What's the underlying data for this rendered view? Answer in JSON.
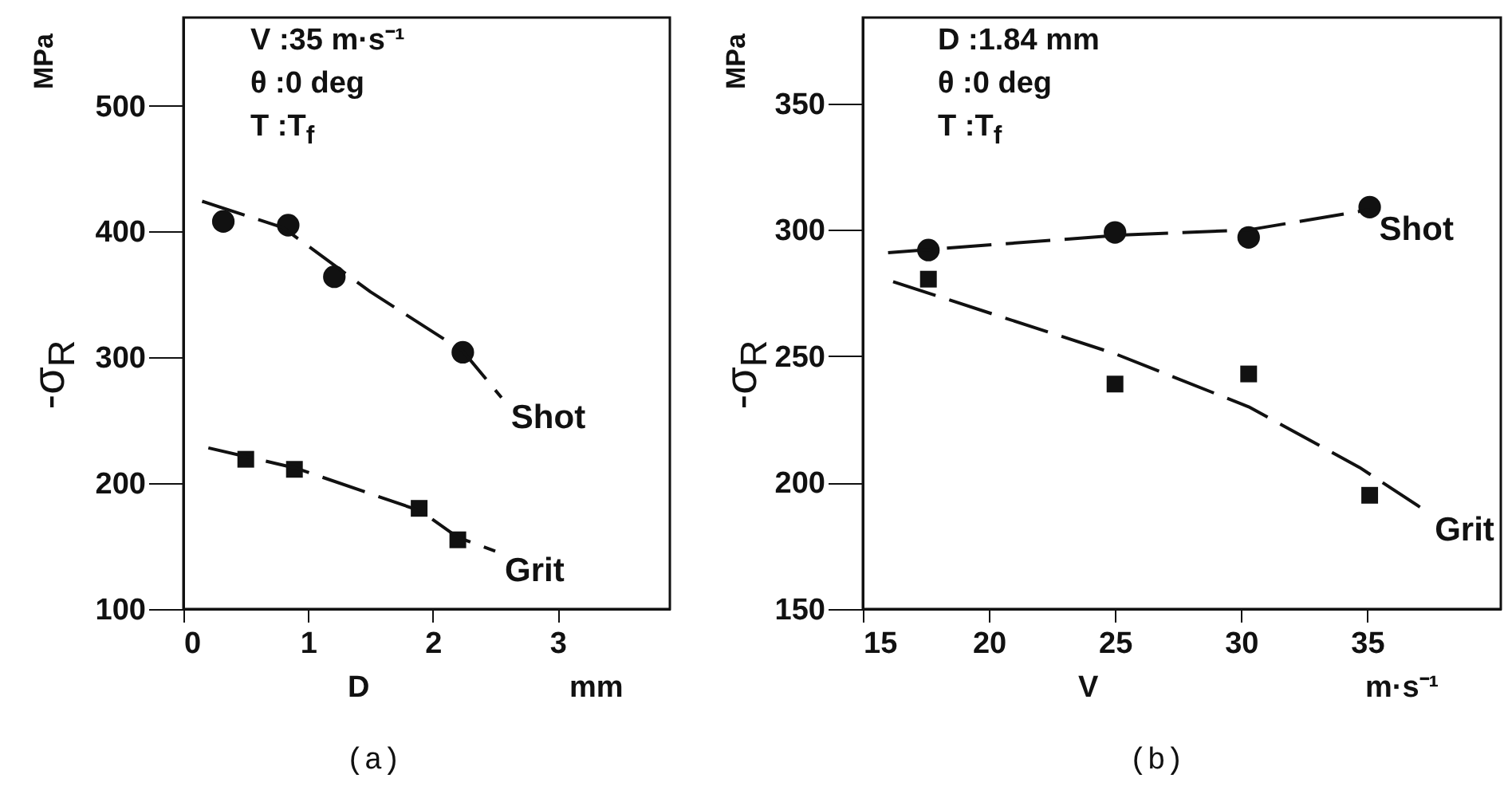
{
  "chart_data": [
    {
      "type": "scatter",
      "title": "(a)",
      "xlabel": "D",
      "ylabel": "-σ$_{R}$",
      "annotations": [
        "V :35 m·s⁻¹",
        "θ :0 deg",
        "T :T$_{f}$",
        "MPa",
        "mm"
      ],
      "xlim": [
        0,
        3.9
      ],
      "xticks": [
        0,
        1,
        2,
        3
      ],
      "ylim": [
        100,
        570
      ],
      "yticks": [
        100,
        200,
        300,
        400,
        500
      ],
      "series": [
        {
          "color": "#111111",
          "marker": "circle",
          "x": [
            0.32,
            0.84,
            1.21,
            2.24
          ],
          "values": [
            408,
            405,
            364,
            304
          ]
        },
        {
          "color": "#111111",
          "marker": "square",
          "x": [
            0.5,
            0.89,
            1.89,
            2.2
          ],
          "values": [
            219,
            211,
            180,
            155
          ]
        },
        {
          "name": "Shot",
          "type": "line",
          "line_style": "dashed",
          "color": "#111111",
          "x": [
            0.15,
            0.8,
            1.5,
            2.24,
            2.55
          ],
          "values": [
            424,
            403,
            352,
            305,
            268
          ]
        },
        {
          "name": "Grit",
          "type": "line",
          "line_style": "dashed",
          "color": "#111111",
          "x": [
            0.2,
            0.9,
            1.9,
            2.2,
            2.5
          ],
          "values": [
            228,
            212,
            178,
            157,
            146
          ]
        }
      ]
    },
    {
      "type": "scatter",
      "title": "(b)",
      "xlabel": "V",
      "ylabel": "-σ$_{R}$",
      "annotations": [
        "D :1.84 mm",
        "θ :0 deg",
        "T :T$_{f}$",
        "MPa",
        "m·s⁻¹"
      ],
      "xlim": [
        15,
        40.3
      ],
      "xticks": [
        15,
        20,
        25,
        30,
        35
      ],
      "ylim": [
        150,
        384
      ],
      "yticks": [
        150,
        200,
        250,
        300,
        350
      ],
      "series": [
        {
          "color": "#111111",
          "marker": "circle",
          "x": [
            17.6,
            25.0,
            30.3,
            35.1
          ],
          "values": [
            292,
            299,
            297,
            309
          ]
        },
        {
          "color": "#111111",
          "marker": "square",
          "x": [
            17.6,
            25.0,
            30.3,
            35.1
          ],
          "values": [
            280.5,
            239,
            243,
            195
          ]
        },
        {
          "name": "Shot",
          "type": "line",
          "line_style": "dashed",
          "color": "#111111",
          "x": [
            16.0,
            25.3,
            30.3,
            35.1
          ],
          "values": [
            291,
            298,
            300,
            308
          ]
        },
        {
          "name": "Grit",
          "type": "line",
          "line_style": "dashed",
          "color": "#111111",
          "x": [
            16.2,
            25.0,
            30.3,
            34.7,
            37.3
          ],
          "values": [
            279.5,
            251,
            230,
            206,
            189
          ]
        }
      ]
    }
  ]
}
